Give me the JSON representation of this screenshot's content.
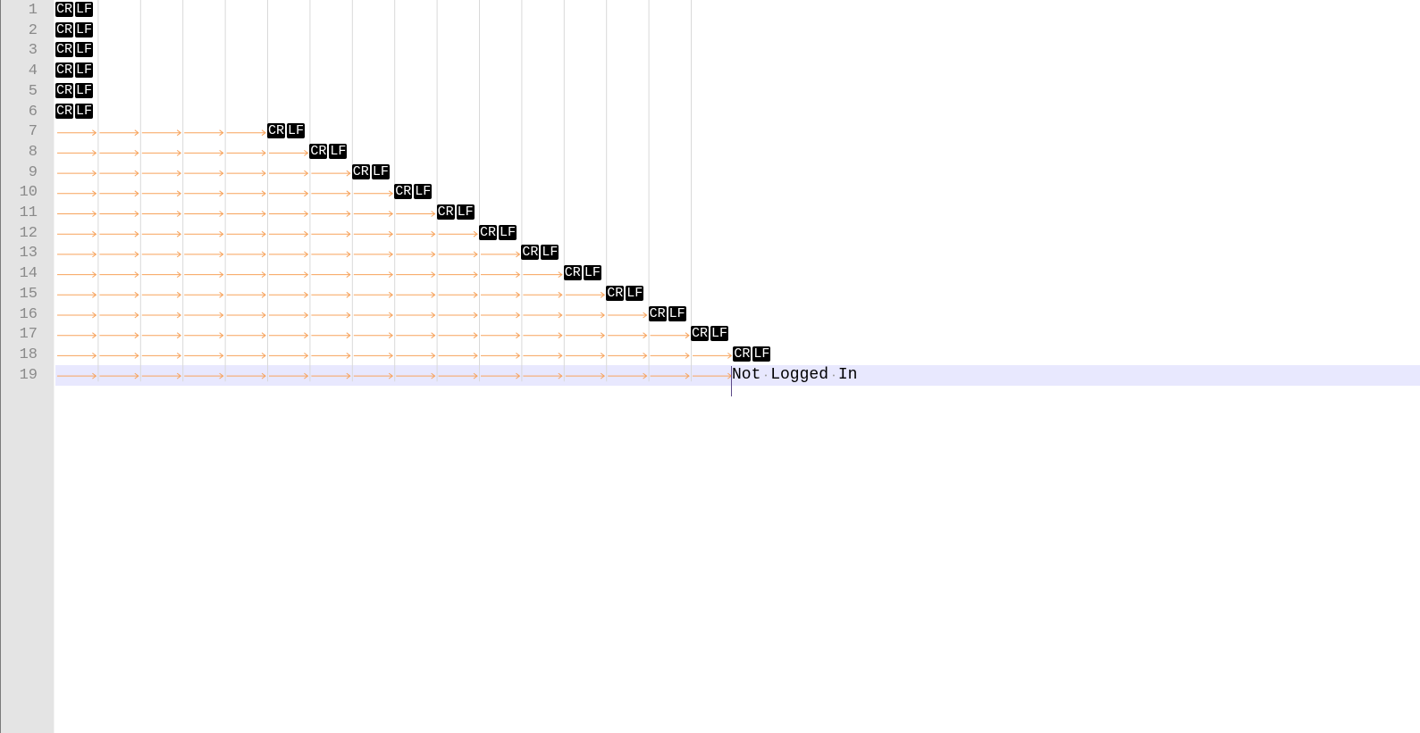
{
  "editor": {
    "line_numbers": [
      "1",
      "2",
      "3",
      "4",
      "5",
      "6",
      "7",
      "8",
      "9",
      "10",
      "11",
      "12",
      "13",
      "14",
      "15",
      "16",
      "17",
      "18",
      "19"
    ],
    "tab_counts": [
      0,
      0,
      0,
      0,
      0,
      0,
      5,
      6,
      7,
      8,
      9,
      10,
      11,
      12,
      13,
      14,
      15,
      16,
      16
    ],
    "eol_tokens": [
      "CR",
      "LF"
    ],
    "last_line_text": "Not Logged In",
    "current_line": 19
  },
  "colors": {
    "gutter_bg": "#e4e4e4",
    "line_number": "#8a8a8a",
    "tab_arrow": "#f7a35c",
    "indent_guide": "#d9d9d9",
    "eol_bg": "#000000",
    "eol_fg": "#ffffff",
    "current_line_bg": "#e8e8fe",
    "caret": "#5d4a89"
  }
}
